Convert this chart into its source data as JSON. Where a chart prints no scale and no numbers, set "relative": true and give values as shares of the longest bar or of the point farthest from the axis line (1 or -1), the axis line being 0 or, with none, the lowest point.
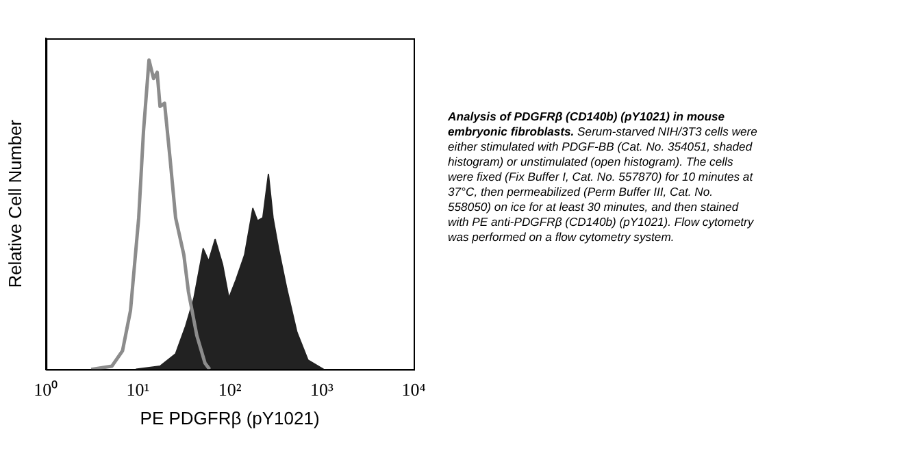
{
  "chart_data": {
    "type": "area",
    "xlabel": "PE PDGFRβ (pY1021)",
    "ylabel": "Relative Cell Number",
    "log": "x",
    "relative": true,
    "legend": false,
    "xlim": [
      1,
      10000
    ],
    "xticks": [
      {
        "value": 1,
        "label": "10⁰"
      },
      {
        "value": 10,
        "label": "10¹"
      },
      {
        "value": 100,
        "label": "10²"
      },
      {
        "value": 1000,
        "label": "10³"
      },
      {
        "value": 10000,
        "label": "10⁴"
      }
    ],
    "series": [
      {
        "type": "line",
        "color": "#8c8c8c",
        "x": [
          3.1,
          5.2,
          6.8,
          8.3,
          10.2,
          11.5,
          13.2,
          14.8,
          16.2,
          17.4,
          19.5,
          22.4,
          25.7,
          31.6,
          35.5,
          43.7,
          53.7,
          60.3
        ],
        "values": [
          0,
          0.01,
          0.06,
          0.19,
          0.49,
          0.77,
          1,
          0.94,
          0.96,
          0.85,
          0.86,
          0.68,
          0.49,
          0.37,
          0.25,
          0.11,
          0.02,
          0
        ]
      },
      {
        "color": "#222222",
        "x": [
          9.5,
          17.4,
          25.7,
          33.1,
          40.7,
          51.3,
          58.9,
          69.2,
          83.2,
          97.7,
          117,
          145,
          178,
          200,
          229,
          263,
          295,
          339,
          417,
          537,
          708,
          1047
        ],
        "values": [
          0,
          0.01,
          0.05,
          0.14,
          0.23,
          0.39,
          0.35,
          0.42,
          0.34,
          0.23,
          0.29,
          0.37,
          0.52,
          0.48,
          0.49,
          0.63,
          0.49,
          0.39,
          0.26,
          0.12,
          0.03,
          0
        ]
      }
    ],
    "annotations": [
      "Analysis of PDGFRβ (CD140b) (pY1021) in mouse embryonic fibroblasts.",
      "Serum-starved NIH/3T3 cells were either stimulated with PDGF-BB (Cat. No. 354051, shaded histogram) or unstimulated (open histogram). The cells were fixed (Fix Buffer I, Cat. No. 557870) for 10 minutes at 37°C, then permeabilized (Perm Buffer III, Cat. No. 558050) on ice for at least 30 minutes, and then stained with PE anti-PDGFRβ (CD140b) (pY1021). Flow cytometry was performed on a flow cytometry system."
    ]
  }
}
